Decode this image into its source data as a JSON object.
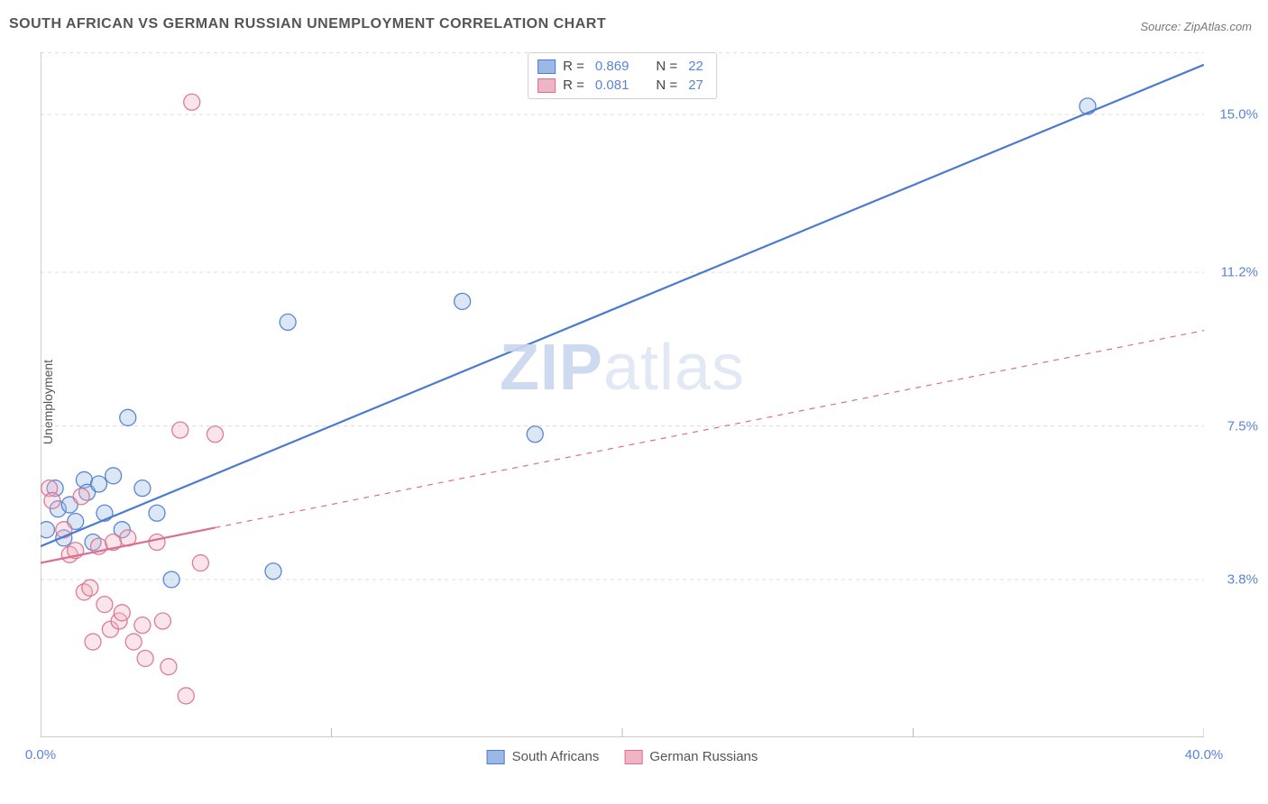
{
  "title": "SOUTH AFRICAN VS GERMAN RUSSIAN UNEMPLOYMENT CORRELATION CHART",
  "source": "Source: ZipAtlas.com",
  "ylabel": "Unemployment",
  "watermark": {
    "part1": "ZIP",
    "part2": "atlas"
  },
  "chart": {
    "type": "scatter",
    "background_color": "#ffffff",
    "grid_color": "#dddddd",
    "axis_color": "#bbbbbb",
    "xlim": [
      0,
      40
    ],
    "ylim": [
      0,
      16.5
    ],
    "xticks": [
      {
        "x": 0,
        "label": "0.0%"
      },
      {
        "x": 40,
        "label": "40.0%"
      }
    ],
    "xtick_lines": [
      0,
      10,
      20,
      30,
      40
    ],
    "yticks": [
      {
        "y": 3.8,
        "label": "3.8%"
      },
      {
        "y": 7.5,
        "label": "7.5%"
      },
      {
        "y": 11.2,
        "label": "11.2%"
      },
      {
        "y": 15.0,
        "label": "15.0%"
      }
    ],
    "tick_label_color": "#5b84d7",
    "tick_label_fontsize": 15,
    "marker_radius": 9,
    "marker_fill_opacity": 0.35,
    "marker_stroke_opacity": 0.9,
    "line_width_solid": 2.2,
    "line_width_dashed": 1.2,
    "dash_pattern": "6,6",
    "series": [
      {
        "name": "South Africans",
        "color_stroke": "#4a7ad1",
        "color_fill": "#9cb9e6",
        "r": 0.869,
        "n": 22,
        "trend_solid": {
          "x1": 0,
          "y1": 4.6,
          "x2": 5,
          "y2": 6.05
        },
        "trend_dashed": {
          "x1": 5,
          "y1": 6.05,
          "x2": 40,
          "y2": 16.2
        },
        "trend_full_solid": true,
        "points": [
          [
            0.2,
            5.0
          ],
          [
            0.5,
            6.0
          ],
          [
            0.6,
            5.5
          ],
          [
            0.8,
            4.8
          ],
          [
            1.0,
            5.6
          ],
          [
            1.2,
            5.2
          ],
          [
            1.5,
            6.2
          ],
          [
            1.6,
            5.9
          ],
          [
            1.8,
            4.7
          ],
          [
            2.0,
            6.1
          ],
          [
            2.2,
            5.4
          ],
          [
            2.5,
            6.3
          ],
          [
            2.8,
            5.0
          ],
          [
            3.0,
            7.7
          ],
          [
            3.5,
            6.0
          ],
          [
            4.0,
            5.4
          ],
          [
            4.5,
            3.8
          ],
          [
            8.0,
            4.0
          ],
          [
            8.5,
            10.0
          ],
          [
            14.5,
            10.5
          ],
          [
            17.0,
            7.3
          ],
          [
            36.0,
            15.2
          ]
        ]
      },
      {
        "name": "German Russians",
        "color_stroke": "#d96f8e",
        "color_fill": "#f0b5c4",
        "r": 0.081,
        "n": 27,
        "trend_solid": {
          "x1": 0,
          "y1": 4.2,
          "x2": 6,
          "y2": 5.05
        },
        "trend_dashed": {
          "x1": 6,
          "y1": 5.05,
          "x2": 40,
          "y2": 9.8
        },
        "trend_full_solid": false,
        "points": [
          [
            0.3,
            6.0
          ],
          [
            0.4,
            5.7
          ],
          [
            0.8,
            5.0
          ],
          [
            1.0,
            4.4
          ],
          [
            1.2,
            4.5
          ],
          [
            1.4,
            5.8
          ],
          [
            1.5,
            3.5
          ],
          [
            1.7,
            3.6
          ],
          [
            1.8,
            2.3
          ],
          [
            2.0,
            4.6
          ],
          [
            2.2,
            3.2
          ],
          [
            2.4,
            2.6
          ],
          [
            2.5,
            4.7
          ],
          [
            2.7,
            2.8
          ],
          [
            2.8,
            3.0
          ],
          [
            3.0,
            4.8
          ],
          [
            3.2,
            2.3
          ],
          [
            3.5,
            2.7
          ],
          [
            3.6,
            1.9
          ],
          [
            4.0,
            4.7
          ],
          [
            4.2,
            2.8
          ],
          [
            4.4,
            1.7
          ],
          [
            4.8,
            7.4
          ],
          [
            5.0,
            1.0
          ],
          [
            5.2,
            15.3
          ],
          [
            5.5,
            4.2
          ],
          [
            6.0,
            7.3
          ]
        ]
      }
    ],
    "legend_top_rows": [
      {
        "swatch_fill": "#9cb9e6",
        "swatch_stroke": "#4a7ad1",
        "r_label": "R =",
        "r_val": "0.869",
        "n_label": "N =",
        "n_val": "22"
      },
      {
        "swatch_fill": "#f0b5c4",
        "swatch_stroke": "#d96f8e",
        "r_label": "R =",
        "r_val": "0.081",
        "n_label": "N =",
        "n_val": "27"
      }
    ],
    "legend_bottom": [
      {
        "swatch_fill": "#9cb9e6",
        "swatch_stroke": "#4a7ad1",
        "label": "South Africans"
      },
      {
        "swatch_fill": "#f0b5c4",
        "swatch_stroke": "#d96f8e",
        "label": "German Russians"
      }
    ]
  }
}
